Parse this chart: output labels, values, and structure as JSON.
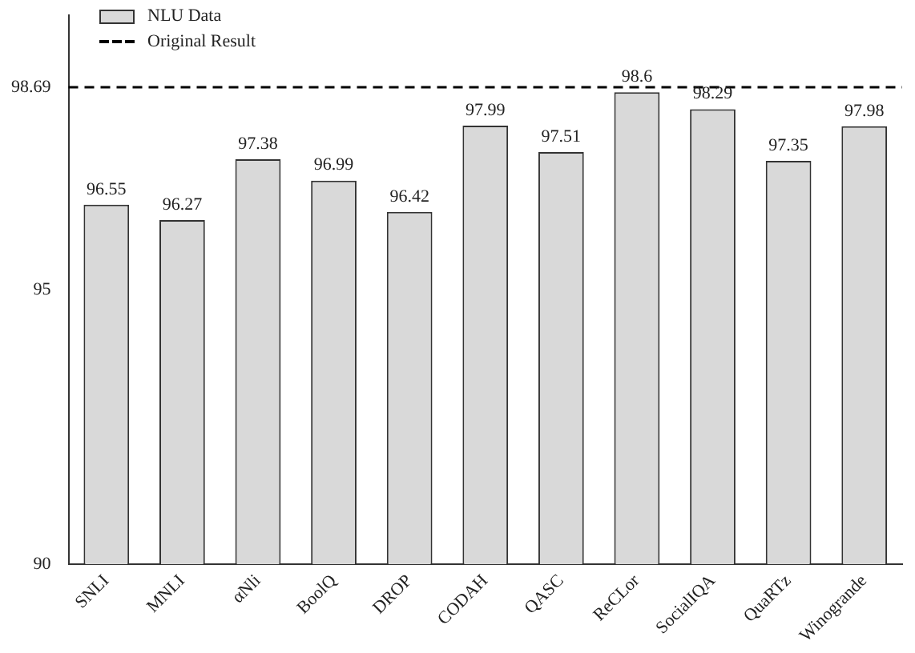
{
  "chart_data": {
    "type": "bar",
    "categories": [
      "SNLI",
      "MNLI",
      "αNli",
      "BoolQ",
      "DROP",
      "CODAH",
      "QASC",
      "ReCLor",
      "SocialIQA",
      "QuaRTz",
      "Winogrande"
    ],
    "series": [
      {
        "name": "NLU Data",
        "color": "#d9d9d9",
        "values": [
          96.55,
          96.27,
          97.38,
          96.99,
          96.42,
          97.99,
          97.51,
          98.6,
          98.29,
          97.35,
          97.98
        ]
      }
    ],
    "ylim": [
      90,
      100
    ],
    "yticks": [
      90,
      95,
      98.69
    ],
    "ref_lines": [
      {
        "axis": "y",
        "value": 98.69,
        "label": "Original Result",
        "line_style": "dashed",
        "color": "#000000"
      }
    ],
    "data_labels": true,
    "legend": "top left",
    "grid": false
  }
}
